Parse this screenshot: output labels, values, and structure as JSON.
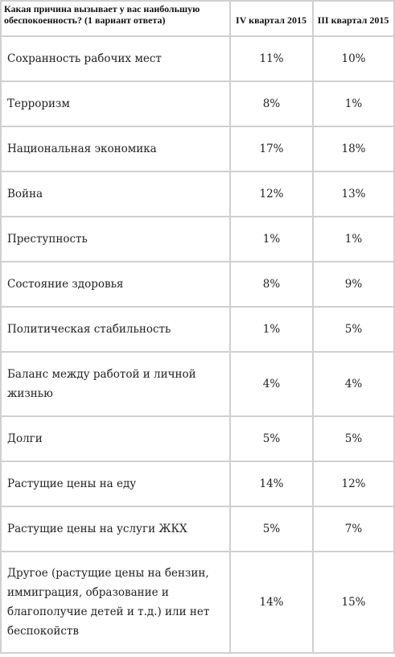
{
  "table": {
    "header": {
      "question": "Какая причина вызывает у вас наибольшую обеспокоенность? (1 вариант ответа)",
      "col_q4": "IV квартал 2015",
      "col_q3": "III квартал 2015"
    },
    "rows": [
      {
        "label": "Сохранность рабочих мест",
        "q4": "11%",
        "q3": "10%"
      },
      {
        "label": "Терроризм",
        "q4": "8%",
        "q3": "1%"
      },
      {
        "label": "Национальная экономика",
        "q4": "17%",
        "q3": "18%"
      },
      {
        "label": "Война",
        "q4": "12%",
        "q3": "13%"
      },
      {
        "label": "Преступность",
        "q4": "1%",
        "q3": "1%"
      },
      {
        "label": "Состояние здоровья",
        "q4": "8%",
        "q3": "9%"
      },
      {
        "label": "Политическая стабильность",
        "q4": "1%",
        "q3": "5%"
      },
      {
        "label": "Баланс между работой и личной жизнью",
        "q4": "4%",
        "q3": "4%"
      },
      {
        "label": "Долги",
        "q4": "5%",
        "q3": "5%"
      },
      {
        "label": "Растущие цены на еду",
        "q4": "14%",
        "q3": "12%"
      },
      {
        "label": "Растущие цены на услуги ЖКХ",
        "q4": "5%",
        "q3": "7%"
      },
      {
        "label": "Другое (растущие цены на бензин, иммиграция, образование и благополучие детей и т.д.) или нет беспокойств",
        "q4": "14%",
        "q3": "15%"
      }
    ]
  }
}
